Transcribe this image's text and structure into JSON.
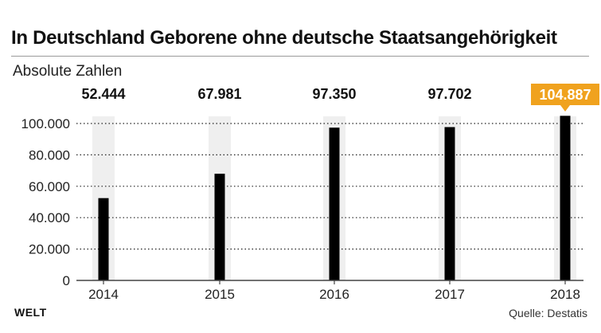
{
  "header": {
    "title": "In Deutschland Geborene ohne deutsche Staatsangehörigkeit",
    "subtitle": "Absolute Zahlen"
  },
  "footer": {
    "logo": "WELT",
    "source": "Quelle: Destatis"
  },
  "colors": {
    "bar": "#000000",
    "band": "#efefef",
    "highlight": "#f0a21e",
    "axis": "#444444",
    "grid": "#222222"
  },
  "chart_data": {
    "type": "bar",
    "categories": [
      "2014",
      "2015",
      "2016",
      "2017",
      "2018"
    ],
    "values": [
      52444,
      67981,
      97350,
      97702,
      104887
    ],
    "value_labels": [
      "52.444",
      "67.981",
      "97.350",
      "97.702",
      "104.887"
    ],
    "highlight_index": 4,
    "title": "In Deutschland Geborene ohne deutsche Staatsangehörigkeit",
    "subtitle": "Absolute Zahlen",
    "xlabel": "",
    "ylabel": "",
    "ylim": [
      0,
      100000
    ],
    "yticks": [
      0,
      20000,
      40000,
      60000,
      80000,
      100000
    ],
    "ytick_labels": [
      "0",
      "20.000",
      "40.000",
      "60.000",
      "80.000",
      "100.000"
    ],
    "grid": "dotted horizontal",
    "legend": "none"
  }
}
